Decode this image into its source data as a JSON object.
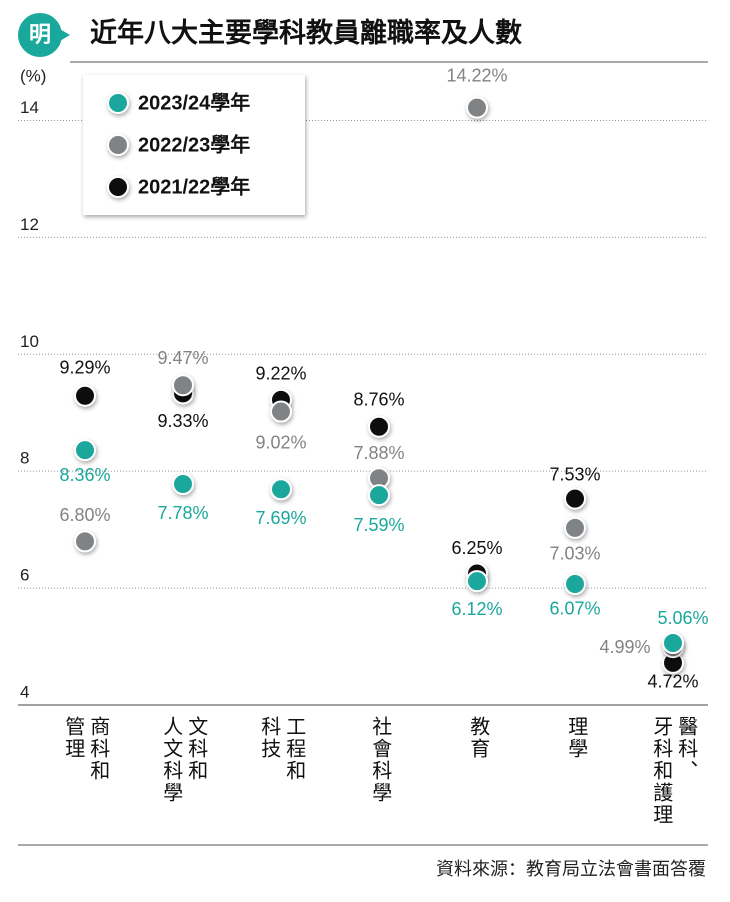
{
  "chart_data": {
    "type": "dot",
    "title": "近年八大主要學科教員離職率及人數",
    "logo": "明",
    "y_label": "(%)",
    "source": "資料來源：教育局立法會書面答覆",
    "categories": [
      [
        "商科和",
        "管理"
      ],
      [
        "文科和",
        "人文科學"
      ],
      [
        "工程和",
        "科技"
      ],
      [
        "社會科學"
      ],
      [
        "教育"
      ],
      [
        "理學"
      ],
      [
        "醫科、",
        "牙科和護理"
      ]
    ],
    "series": [
      {
        "name": "2023/24學年",
        "color": "#1aa79c",
        "values": [
          8.36,
          7.78,
          7.69,
          7.59,
          6.12,
          6.07,
          5.06
        ],
        "value_labels": [
          "8.36%",
          "7.78%",
          "7.69%",
          "7.59%",
          "6.12%",
          "6.07%",
          "5.06%"
        ]
      },
      {
        "name": "2022/23學年",
        "color": "#808385",
        "values": [
          6.8,
          9.47,
          9.02,
          7.88,
          14.22,
          7.03,
          4.99
        ],
        "value_labels": [
          "6.80%",
          "9.47%",
          "9.02%",
          "7.88%",
          "14.22%",
          "7.03%",
          "4.99%"
        ]
      },
      {
        "name": "2021/22學年",
        "color": "#111111",
        "values": [
          9.29,
          9.33,
          9.22,
          8.76,
          6.25,
          7.53,
          4.72
        ],
        "value_labels": [
          "9.29%",
          "9.33%",
          "9.22%",
          "8.76%",
          "6.25%",
          "7.53%",
          "4.72%"
        ]
      }
    ],
    "ylim": [
      4,
      15
    ],
    "yticks": [
      4,
      6,
      8,
      10,
      12,
      14
    ],
    "grid": true
  }
}
